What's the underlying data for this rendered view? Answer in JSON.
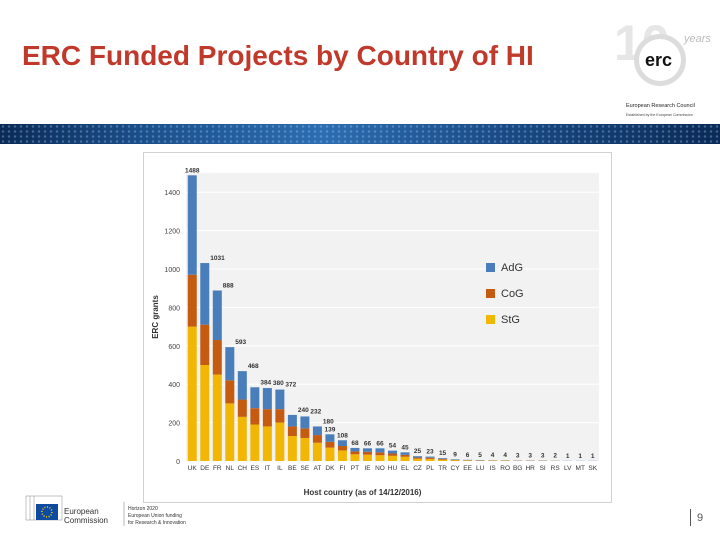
{
  "slide": {
    "title": "ERC Funded Projects by Country of HI",
    "page_number": "9"
  },
  "logo": {
    "mark": "erc",
    "tagline": "years",
    "number": "10",
    "org_name": "European Research Council",
    "sub": "Established by the European Commission"
  },
  "footer": {
    "ec_line1": "European",
    "ec_line2": "Commission",
    "h2020_line1": "Horizon 2020",
    "h2020_line2": "European Union funding",
    "h2020_line3": "for Research & Innovation"
  },
  "chart_data": {
    "type": "bar",
    "stacked": true,
    "categories": [
      "UK",
      "DE",
      "FR",
      "NL",
      "CH",
      "ES",
      "IT",
      "IL",
      "BE",
      "SE",
      "AT",
      "DK",
      "FI",
      "PT",
      "IE",
      "NO",
      "HU",
      "EL",
      "CZ",
      "PL",
      "TR",
      "CY",
      "EE",
      "LU",
      "IS",
      "RO",
      "BG",
      "HR",
      "SI",
      "RS",
      "LV",
      "MT",
      "SK"
    ],
    "totals": [
      1488,
      1031,
      888,
      593,
      468,
      384,
      380,
      372,
      240,
      232,
      180,
      139,
      108,
      68,
      66,
      66,
      54,
      45,
      25,
      23,
      15,
      9,
      6,
      5,
      4,
      4,
      3,
      3,
      3,
      2,
      1,
      1,
      1
    ],
    "series": [
      {
        "name": "StG",
        "color": "#f2b705",
        "values": [
          700,
          500,
          450,
          300,
          230,
          190,
          180,
          200,
          130,
          120,
          95,
          70,
          55,
          35,
          33,
          30,
          27,
          22,
          12,
          11,
          7,
          4,
          3,
          2,
          2,
          2,
          1,
          1,
          1,
          1,
          0,
          0,
          0
        ]
      },
      {
        "name": "CoG",
        "color": "#c55a11",
        "values": [
          270,
          210,
          180,
          120,
          90,
          85,
          90,
          70,
          50,
          50,
          40,
          30,
          23,
          15,
          15,
          15,
          12,
          10,
          6,
          6,
          4,
          2,
          1,
          1,
          1,
          1,
          1,
          1,
          1,
          0,
          0,
          0,
          0
        ]
      },
      {
        "name": "AdG",
        "color": "#4a7ebb",
        "values": [
          518,
          321,
          258,
          173,
          148,
          109,
          110,
          102,
          60,
          62,
          45,
          39,
          30,
          18,
          18,
          21,
          15,
          13,
          7,
          6,
          4,
          3,
          2,
          2,
          1,
          1,
          1,
          1,
          1,
          1,
          1,
          1,
          1
        ]
      }
    ],
    "legend_order": [
      "AdG",
      "CoG",
      "StG"
    ],
    "legend_position": "right",
    "xlabel": "Host country (as of 14/12/2016)",
    "ylabel": "ERC grants",
    "ylim": [
      0,
      1500
    ],
    "yticks": [
      0,
      200,
      400,
      600,
      800,
      1000,
      1200,
      1400
    ],
    "grid": true
  }
}
